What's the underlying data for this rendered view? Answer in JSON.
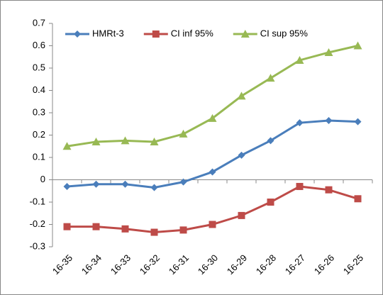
{
  "chart_data": {
    "type": "line",
    "categories": [
      "16-35",
      "16-34",
      "16-33",
      "16-32",
      "16-31",
      "16-30",
      "16-29",
      "16-28",
      "16-27",
      "16-26",
      "16-25"
    ],
    "series": [
      {
        "name": "HMRt-3",
        "color": "#4a7ebb",
        "marker": "diamond",
        "values": [
          -0.03,
          -0.02,
          -0.02,
          -0.035,
          -0.01,
          0.035,
          0.11,
          0.175,
          0.255,
          0.265,
          0.26
        ]
      },
      {
        "name": "CI inf 95%",
        "color": "#be4b48",
        "marker": "square",
        "values": [
          -0.21,
          -0.21,
          -0.22,
          -0.235,
          -0.225,
          -0.2,
          -0.16,
          -0.1,
          -0.03,
          -0.045,
          -0.085
        ]
      },
      {
        "name": "CI sup 95%",
        "color": "#98b954",
        "marker": "triangle",
        "values": [
          0.15,
          0.17,
          0.175,
          0.17,
          0.205,
          0.275,
          0.375,
          0.455,
          0.535,
          0.57,
          0.6
        ]
      }
    ],
    "ylim": [
      -0.3,
      0.7
    ],
    "yticks": [
      -0.3,
      -0.2,
      -0.1,
      0,
      0.1,
      0.2,
      0.3,
      0.4,
      0.5,
      0.6,
      0.7
    ],
    "grid": false,
    "legend": "top-left"
  }
}
